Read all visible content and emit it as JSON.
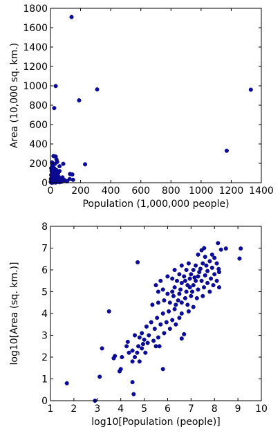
{
  "chart_data": [
    {
      "type": "scatter",
      "xlabel": "Population (1,000,000 people)",
      "ylabel": "Area (10,000 sq. km.)",
      "xlim": [
        0,
        1400
      ],
      "ylim": [
        0,
        1800
      ],
      "xticks": [
        0,
        200,
        400,
        600,
        800,
        1000,
        1200,
        1400
      ],
      "yticks": [
        0,
        200,
        400,
        600,
        800,
        1000,
        1200,
        1400,
        1600,
        1800
      ],
      "grid": false,
      "color": "#0b0b9e",
      "points": [
        [
          1330,
          960
        ],
        [
          1170,
          330
        ],
        [
          310,
          963
        ],
        [
          190,
          850
        ],
        [
          140,
          1710
        ],
        [
          35,
          998
        ],
        [
          25,
          770
        ],
        [
          230,
          190
        ],
        [
          130,
          90
        ],
        [
          145,
          85
        ],
        [
          85,
          195
        ],
        [
          127,
          38
        ],
        [
          80,
          55
        ],
        [
          60,
          170
        ],
        [
          50,
          95
        ],
        [
          70,
          40
        ],
        [
          35,
          270
        ],
        [
          40,
          240
        ],
        [
          20,
          275
        ],
        [
          45,
          215
        ],
        [
          10,
          210
        ],
        [
          30,
          195
        ],
        [
          15,
          180
        ],
        [
          5,
          150
        ],
        [
          25,
          150
        ],
        [
          40,
          130
        ],
        [
          60,
          120
        ],
        [
          18,
          125
        ],
        [
          8,
          120
        ],
        [
          35,
          110
        ],
        [
          50,
          100
        ],
        [
          12,
          95
        ],
        [
          28,
          90
        ],
        [
          45,
          80
        ],
        [
          5,
          80
        ],
        [
          20,
          75
        ],
        [
          38,
          65
        ],
        [
          55,
          60
        ],
        [
          10,
          55
        ],
        [
          25,
          50
        ],
        [
          42,
          45
        ],
        [
          65,
          35
        ],
        [
          3,
          40
        ],
        [
          15,
          35
        ],
        [
          30,
          30
        ],
        [
          48,
          25
        ],
        [
          8,
          25
        ],
        [
          22,
          20
        ],
        [
          36,
          15
        ],
        [
          55,
          12
        ],
        [
          2,
          10
        ],
        [
          12,
          8
        ],
        [
          28,
          8
        ],
        [
          40,
          5
        ],
        [
          6,
          5
        ],
        [
          18,
          3
        ],
        [
          33,
          2
        ],
        [
          90,
          30
        ],
        [
          100,
          20
        ],
        [
          110,
          15
        ],
        [
          75,
          10
        ],
        [
          4,
          2
        ],
        [
          9,
          1
        ],
        [
          14,
          4
        ],
        [
          60,
          5
        ],
        [
          150,
          30
        ]
      ]
    },
    {
      "type": "scatter",
      "xlabel": "log10[Population (people)]",
      "ylabel": "log10[Area (sq. km.)]",
      "xlim": [
        1,
        10
      ],
      "ylim": [
        0,
        8
      ],
      "xticks": [
        1,
        2,
        3,
        4,
        5,
        6,
        7,
        8,
        9,
        10
      ],
      "yticks": [
        0,
        1,
        2,
        3,
        4,
        5,
        6,
        7,
        8
      ],
      "grid": false,
      "color": "#0b0b9e",
      "points": [
        [
          9.12,
          6.98
        ],
        [
          9.07,
          6.52
        ],
        [
          8.49,
          6.98
        ],
        [
          8.28,
          6.93
        ],
        [
          8.15,
          7.23
        ],
        [
          8.18,
          6.04
        ],
        [
          7.56,
          7.0
        ],
        [
          7.45,
          6.9
        ],
        [
          7.9,
          6.7
        ],
        [
          8.0,
          6.55
        ],
        [
          7.3,
          6.7
        ],
        [
          7.6,
          6.6
        ],
        [
          7.8,
          6.4
        ],
        [
          8.1,
          6.3
        ],
        [
          7.2,
          6.2
        ],
        [
          7.5,
          6.3
        ],
        [
          7.9,
          6.1
        ],
        [
          8.2,
          5.9
        ],
        [
          8.0,
          5.8
        ],
        [
          7.7,
          5.95
        ],
        [
          7.4,
          6.05
        ],
        [
          7.1,
          6.0
        ],
        [
          6.8,
          6.0
        ],
        [
          7.0,
          5.8
        ],
        [
          7.3,
          5.7
        ],
        [
          7.6,
          5.75
        ],
        [
          7.85,
          5.6
        ],
        [
          8.1,
          5.5
        ],
        [
          8.2,
          5.2
        ],
        [
          7.95,
          5.3
        ],
        [
          7.7,
          5.4
        ],
        [
          7.45,
          5.5
        ],
        [
          7.2,
          5.5
        ],
        [
          6.95,
          5.6
        ],
        [
          6.7,
          5.7
        ],
        [
          6.5,
          5.8
        ],
        [
          6.3,
          6.0
        ],
        [
          6.6,
          6.2
        ],
        [
          6.9,
          6.3
        ],
        [
          7.1,
          5.3
        ],
        [
          6.85,
          5.3
        ],
        [
          6.6,
          5.4
        ],
        [
          6.4,
          5.5
        ],
        [
          6.2,
          5.6
        ],
        [
          6.0,
          5.7
        ],
        [
          6.3,
          5.2
        ],
        [
          6.55,
          5.1
        ],
        [
          6.8,
          5.0
        ],
        [
          7.05,
          5.0
        ],
        [
          7.3,
          5.1
        ],
        [
          7.55,
          5.2
        ],
        [
          7.8,
          5.0
        ],
        [
          7.5,
          4.8
        ],
        [
          7.25,
          4.7
        ],
        [
          7.0,
          4.8
        ],
        [
          6.75,
          4.7
        ],
        [
          6.5,
          4.9
        ],
        [
          6.25,
          4.8
        ],
        [
          6.0,
          4.9
        ],
        [
          5.8,
          5.1
        ],
        [
          5.5,
          5.3
        ],
        [
          5.7,
          5.5
        ],
        [
          5.6,
          5.0
        ],
        [
          5.35,
          4.4
        ],
        [
          5.6,
          4.5
        ],
        [
          5.85,
          4.6
        ],
        [
          6.1,
          4.5
        ],
        [
          6.35,
          4.4
        ],
        [
          6.6,
          4.5
        ],
        [
          6.85,
          4.4
        ],
        [
          7.1,
          4.3
        ],
        [
          6.9,
          4.1
        ],
        [
          6.6,
          4.0
        ],
        [
          6.3,
          4.2
        ],
        [
          6.05,
          4.1
        ],
        [
          5.8,
          4.0
        ],
        [
          5.55,
          3.8
        ],
        [
          5.3,
          3.6
        ],
        [
          5.1,
          3.4
        ],
        [
          4.9,
          3.1
        ],
        [
          5.2,
          3.0
        ],
        [
          5.45,
          3.3
        ],
        [
          5.7,
          3.5
        ],
        [
          5.95,
          3.6
        ],
        [
          6.2,
          3.7
        ],
        [
          6.5,
          3.8
        ],
        [
          6.35,
          3.5
        ],
        [
          6.1,
          3.3
        ],
        [
          5.85,
          3.1
        ],
        [
          5.6,
          2.9
        ],
        [
          6.7,
          3.05
        ],
        [
          6.6,
          2.85
        ],
        [
          4.72,
          6.35
        ],
        [
          3.5,
          4.1
        ],
        [
          4.6,
          3.0
        ],
        [
          4.8,
          2.9
        ],
        [
          5.0,
          2.8
        ],
        [
          4.95,
          2.6
        ],
        [
          4.75,
          2.5
        ],
        [
          5.15,
          2.65
        ],
        [
          5.4,
          2.75
        ],
        [
          5.65,
          2.5
        ],
        [
          5.5,
          2.5
        ],
        [
          4.3,
          2.7
        ],
        [
          4.25,
          2.5
        ],
        [
          4.5,
          2.3
        ],
        [
          4.7,
          2.2
        ],
        [
          4.35,
          2.2
        ],
        [
          4.6,
          2.0
        ],
        [
          4.8,
          1.8
        ],
        [
          4.5,
          1.8
        ],
        [
          4.05,
          2.0
        ],
        [
          3.75,
          2.05
        ],
        [
          3.7,
          1.95
        ],
        [
          3.2,
          2.4
        ],
        [
          4.0,
          1.45
        ],
        [
          3.95,
          1.35
        ],
        [
          3.1,
          1.1
        ],
        [
          5.8,
          1.45
        ],
        [
          4.5,
          0.85
        ],
        [
          4.55,
          0.3
        ],
        [
          1.7,
          0.8
        ],
        [
          2.9,
          0.0
        ],
        [
          4.9,
          2.4
        ],
        [
          5.05,
          2.2
        ],
        [
          6.45,
          4.6
        ],
        [
          6.2,
          5.0
        ],
        [
          6.95,
          5.2
        ],
        [
          7.35,
          5.9
        ],
        [
          7.65,
          6.2
        ],
        [
          6.75,
          5.5
        ],
        [
          7.15,
          5.65
        ]
      ]
    }
  ]
}
